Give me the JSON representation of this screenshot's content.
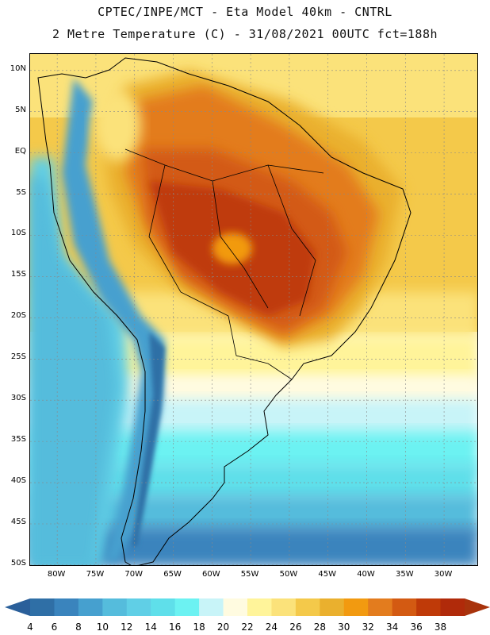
{
  "title": {
    "line1": "CPTEC/INPE/MCT -  Eta Model 40km - CNTRL",
    "line2": "2 Metre Temperature (C) - 31/08/2021 00UTC fct=188h"
  },
  "map": {
    "latitude_labels": [
      "10N",
      "5N",
      "EQ",
      "5S",
      "10S",
      "15S",
      "20S",
      "25S",
      "30S",
      "35S",
      "40S",
      "45S",
      "50S"
    ],
    "latitude_values": [
      10,
      5,
      0,
      -5,
      -10,
      -15,
      -20,
      -25,
      -30,
      -35,
      -40,
      -45,
      -50
    ],
    "longitude_labels": [
      "80W",
      "75W",
      "70W",
      "65W",
      "60W",
      "55W",
      "50W",
      "45W",
      "40W",
      "35W",
      "30W"
    ],
    "longitude_values": [
      -80,
      -75,
      -70,
      -65,
      -60,
      -55,
      -50,
      -45,
      -40,
      -35,
      -30
    ],
    "extent": {
      "lon_min": -83.5,
      "lon_max": -25.5,
      "lat_min": -50.2,
      "lat_max": 12.0
    }
  },
  "colorbar": {
    "labels": [
      "4",
      "6",
      "8",
      "10",
      "12",
      "14",
      "16",
      "18",
      "20",
      "22",
      "24",
      "26",
      "28",
      "30",
      "32",
      "34",
      "36",
      "38"
    ],
    "colors": [
      "#2f6fa6",
      "#3a84bd",
      "#46a0cf",
      "#55bcdc",
      "#60cfe6",
      "#5fdfea",
      "#6cf2f2",
      "#c8f4f8",
      "#fffbe0",
      "#fff49a",
      "#fbe27a",
      "#f4c94a",
      "#eab02e",
      "#f29a10",
      "#e37c1e",
      "#d35a12",
      "#bf3a08",
      "#b02a0a"
    ],
    "low_arrow_color": "#2a5f9a",
    "high_arrow_color": "#a8330c"
  }
}
